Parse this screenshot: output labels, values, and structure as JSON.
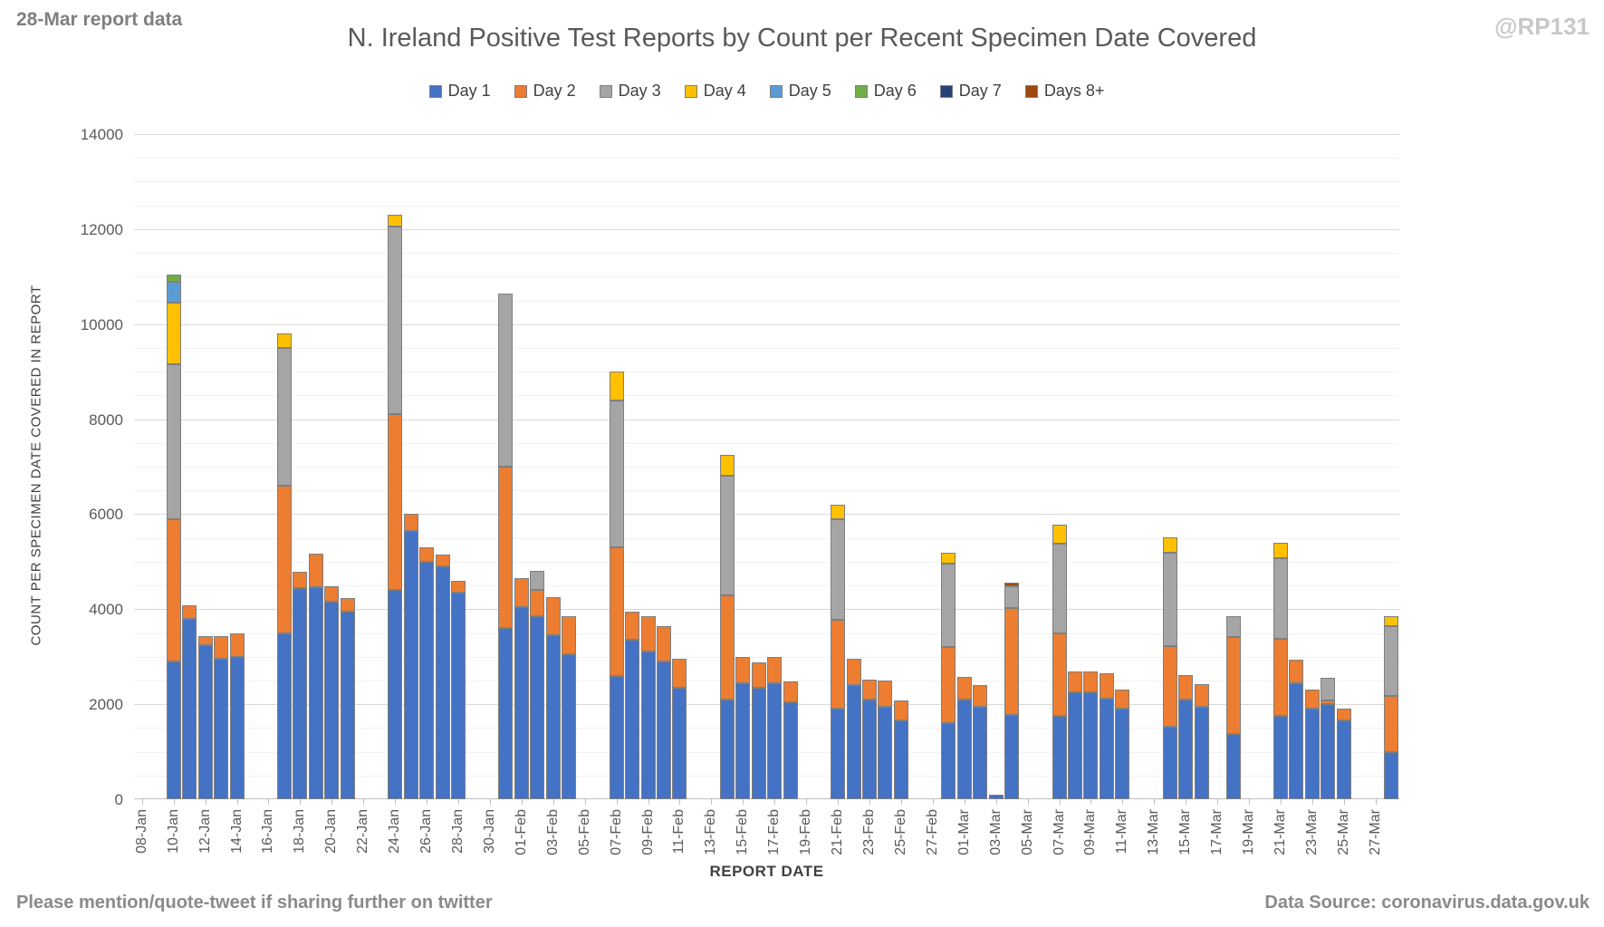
{
  "header": {
    "report_note": "28-Mar report data",
    "title": "N. Ireland Positive Test Reports by Count per Recent Specimen Date Covered",
    "watermark": "@RP131"
  },
  "footer": {
    "left": "Please mention/quote-tweet if sharing further on twitter",
    "right": "Data Source: coronavirus.data.gov.uk"
  },
  "chart_data": {
    "type": "bar",
    "stacked": true,
    "title": "N. Ireland Positive Test Reports by Count per Recent Specimen Date Covered",
    "xlabel": "REPORT DATE",
    "ylabel": "COUNT PER SPECIMEN DATE COVERED IN REPORT",
    "ylim": [
      0,
      14000
    ],
    "ytick_step": 2000,
    "minor_grid_step": 500,
    "grid": true,
    "legend_position": "top",
    "x_axis_start": "08-Jan",
    "x_total_days": 80,
    "x_tick_labels": [
      "08-Jan",
      "10-Jan",
      "12-Jan",
      "14-Jan",
      "16-Jan",
      "18-Jan",
      "20-Jan",
      "22-Jan",
      "24-Jan",
      "26-Jan",
      "28-Jan",
      "30-Jan",
      "01-Feb",
      "03-Feb",
      "05-Feb",
      "07-Feb",
      "09-Feb",
      "11-Feb",
      "13-Feb",
      "15-Feb",
      "17-Feb",
      "19-Feb",
      "21-Feb",
      "23-Feb",
      "25-Feb",
      "27-Feb",
      "01-Mar",
      "03-Mar",
      "05-Mar",
      "07-Mar",
      "09-Mar",
      "11-Mar",
      "13-Mar",
      "15-Mar",
      "17-Mar",
      "19-Mar",
      "21-Mar",
      "23-Mar",
      "25-Mar",
      "27-Mar"
    ],
    "series": [
      {
        "label": "Day 1",
        "color": "#4472C4"
      },
      {
        "label": "Day 2",
        "color": "#ED7D31"
      },
      {
        "label": "Day 3",
        "color": "#A5A5A5"
      },
      {
        "label": "Day 4",
        "color": "#FFC000"
      },
      {
        "label": "Day 5",
        "color": "#5B9BD5"
      },
      {
        "label": "Day 6",
        "color": "#70AD47"
      },
      {
        "label": "Day 7",
        "color": "#264478"
      },
      {
        "label": "Days 8+",
        "color": "#9E480E"
      }
    ],
    "bars": [
      {
        "date": "10-Jan",
        "offset": 2,
        "values": [
          2900,
          3000,
          3250,
          1300,
          450,
          150
        ]
      },
      {
        "date": "11-Jan",
        "offset": 3,
        "values": [
          3800,
          280
        ]
      },
      {
        "date": "12-Jan",
        "offset": 4,
        "values": [
          3250,
          180
        ]
      },
      {
        "date": "13-Jan",
        "offset": 5,
        "values": [
          2950,
          490
        ]
      },
      {
        "date": "14-Jan",
        "offset": 6,
        "values": [
          3000,
          500
        ]
      },
      {
        "date": "17-Jan",
        "offset": 9,
        "values": [
          3500,
          3100,
          2900,
          300
        ]
      },
      {
        "date": "18-Jan",
        "offset": 10,
        "values": [
          4450,
          330
        ]
      },
      {
        "date": "19-Jan",
        "offset": 11,
        "values": [
          4470,
          700
        ]
      },
      {
        "date": "20-Jan",
        "offset": 12,
        "values": [
          4150,
          330
        ]
      },
      {
        "date": "21-Jan",
        "offset": 13,
        "values": [
          3950,
          280
        ]
      },
      {
        "date": "24-Jan",
        "offset": 16,
        "values": [
          4400,
          3700,
          3950,
          250
        ]
      },
      {
        "date": "25-Jan",
        "offset": 17,
        "values": [
          5650,
          350
        ]
      },
      {
        "date": "26-Jan",
        "offset": 18,
        "values": [
          5000,
          300
        ]
      },
      {
        "date": "27-Jan",
        "offset": 19,
        "values": [
          4900,
          250
        ]
      },
      {
        "date": "28-Jan",
        "offset": 20,
        "values": [
          4350,
          250
        ]
      },
      {
        "date": "31-Jan",
        "offset": 23,
        "values": [
          3600,
          3400,
          3650
        ]
      },
      {
        "date": "01-Feb",
        "offset": 24,
        "values": [
          4050,
          600
        ]
      },
      {
        "date": "02-Feb",
        "offset": 25,
        "values": [
          3850,
          550,
          400
        ]
      },
      {
        "date": "03-Feb",
        "offset": 26,
        "values": [
          3450,
          800
        ]
      },
      {
        "date": "04-Feb",
        "offset": 27,
        "values": [
          3050,
          800
        ]
      },
      {
        "date": "07-Feb",
        "offset": 30,
        "values": [
          2600,
          2700,
          3100,
          600
        ]
      },
      {
        "date": "08-Feb",
        "offset": 31,
        "values": [
          3350,
          600
        ]
      },
      {
        "date": "09-Feb",
        "offset": 32,
        "values": [
          3100,
          750
        ]
      },
      {
        "date": "10-Feb",
        "offset": 33,
        "values": [
          2900,
          750
        ]
      },
      {
        "date": "11-Feb",
        "offset": 34,
        "values": [
          2350,
          600
        ]
      },
      {
        "date": "14-Feb",
        "offset": 37,
        "values": [
          2100,
          2200,
          2500,
          450
        ]
      },
      {
        "date": "15-Feb",
        "offset": 38,
        "values": [
          2450,
          550
        ]
      },
      {
        "date": "16-Feb",
        "offset": 39,
        "values": [
          2350,
          530
        ]
      },
      {
        "date": "17-Feb",
        "offset": 40,
        "values": [
          2450,
          550
        ]
      },
      {
        "date": "18-Feb",
        "offset": 41,
        "values": [
          2050,
          430
        ]
      },
      {
        "date": "21-Feb",
        "offset": 44,
        "values": [
          1900,
          1880,
          2120,
          300
        ]
      },
      {
        "date": "22-Feb",
        "offset": 45,
        "values": [
          2400,
          550
        ]
      },
      {
        "date": "23-Feb",
        "offset": 46,
        "values": [
          2100,
          420
        ]
      },
      {
        "date": "24-Feb",
        "offset": 47,
        "values": [
          1950,
          550
        ]
      },
      {
        "date": "25-Feb",
        "offset": 48,
        "values": [
          1650,
          430
        ]
      },
      {
        "date": "28-Feb",
        "offset": 51,
        "values": [
          1600,
          1600,
          1750,
          230
        ]
      },
      {
        "date": "01-Mar",
        "offset": 52,
        "values": [
          2100,
          470
        ]
      },
      {
        "date": "02-Mar",
        "offset": 53,
        "values": [
          1950,
          450
        ]
      },
      {
        "date": "03-Mar",
        "offset": 54,
        "values": [
          100
        ]
      },
      {
        "date": "04-Mar",
        "offset": 55,
        "values": [
          1780,
          2250,
          450,
          0,
          0,
          0,
          0,
          70
        ]
      },
      {
        "date": "07-Mar",
        "offset": 58,
        "values": [
          1750,
          1750,
          1880,
          400
        ]
      },
      {
        "date": "08-Mar",
        "offset": 59,
        "values": [
          2250,
          430
        ]
      },
      {
        "date": "09-Mar",
        "offset": 60,
        "values": [
          2250,
          430
        ]
      },
      {
        "date": "10-Mar",
        "offset": 61,
        "values": [
          2120,
          530
        ]
      },
      {
        "date": "11-Mar",
        "offset": 62,
        "values": [
          1900,
          400
        ]
      },
      {
        "date": "14-Mar",
        "offset": 65,
        "values": [
          1520,
          1710,
          1950,
          340
        ]
      },
      {
        "date": "15-Mar",
        "offset": 66,
        "values": [
          2100,
          520
        ]
      },
      {
        "date": "16-Mar",
        "offset": 67,
        "values": [
          1950,
          480
        ]
      },
      {
        "date": "18-Mar",
        "offset": 69,
        "values": [
          1380,
          2040,
          430
        ]
      },
      {
        "date": "21-Mar",
        "offset": 72,
        "values": [
          1750,
          1630,
          1700,
          320
        ]
      },
      {
        "date": "22-Mar",
        "offset": 73,
        "values": [
          2450,
          480
        ]
      },
      {
        "date": "23-Mar",
        "offset": 74,
        "values": [
          1900,
          400
        ]
      },
      {
        "date": "24-Mar",
        "offset": 75,
        "values": [
          2000,
          80,
          470
        ]
      },
      {
        "date": "25-Mar",
        "offset": 76,
        "values": [
          1650,
          250
        ]
      },
      {
        "date": "28-Mar",
        "offset": 79,
        "values": [
          1000,
          1180,
          1470,
          200
        ]
      }
    ]
  }
}
